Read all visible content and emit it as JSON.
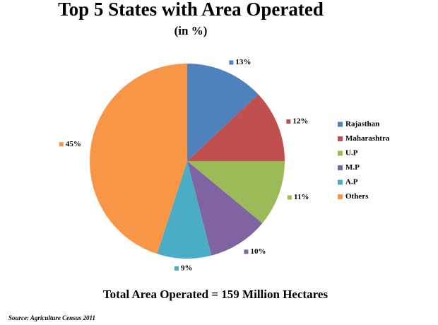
{
  "chart_data": {
    "type": "pie",
    "title": "Top 5 States with Area Operated",
    "subtitle": "(in %)",
    "categories": [
      "Rajasthan",
      "Maharashtra",
      "U.P",
      "M.P",
      "A.P",
      "Others"
    ],
    "values": [
      13,
      12,
      11,
      10,
      9,
      45
    ],
    "value_labels": [
      "13%",
      "12%",
      "11%",
      "10%",
      "9%",
      "45%"
    ],
    "colors": [
      "#4f81bd",
      "#c0504d",
      "#9bbb59",
      "#8064a2",
      "#4bacc6",
      "#f79646"
    ],
    "legend": "right",
    "annotation": "Total Area Operated = 159 Million Hectares",
    "source": "Source: Agriculture Census 2011"
  }
}
